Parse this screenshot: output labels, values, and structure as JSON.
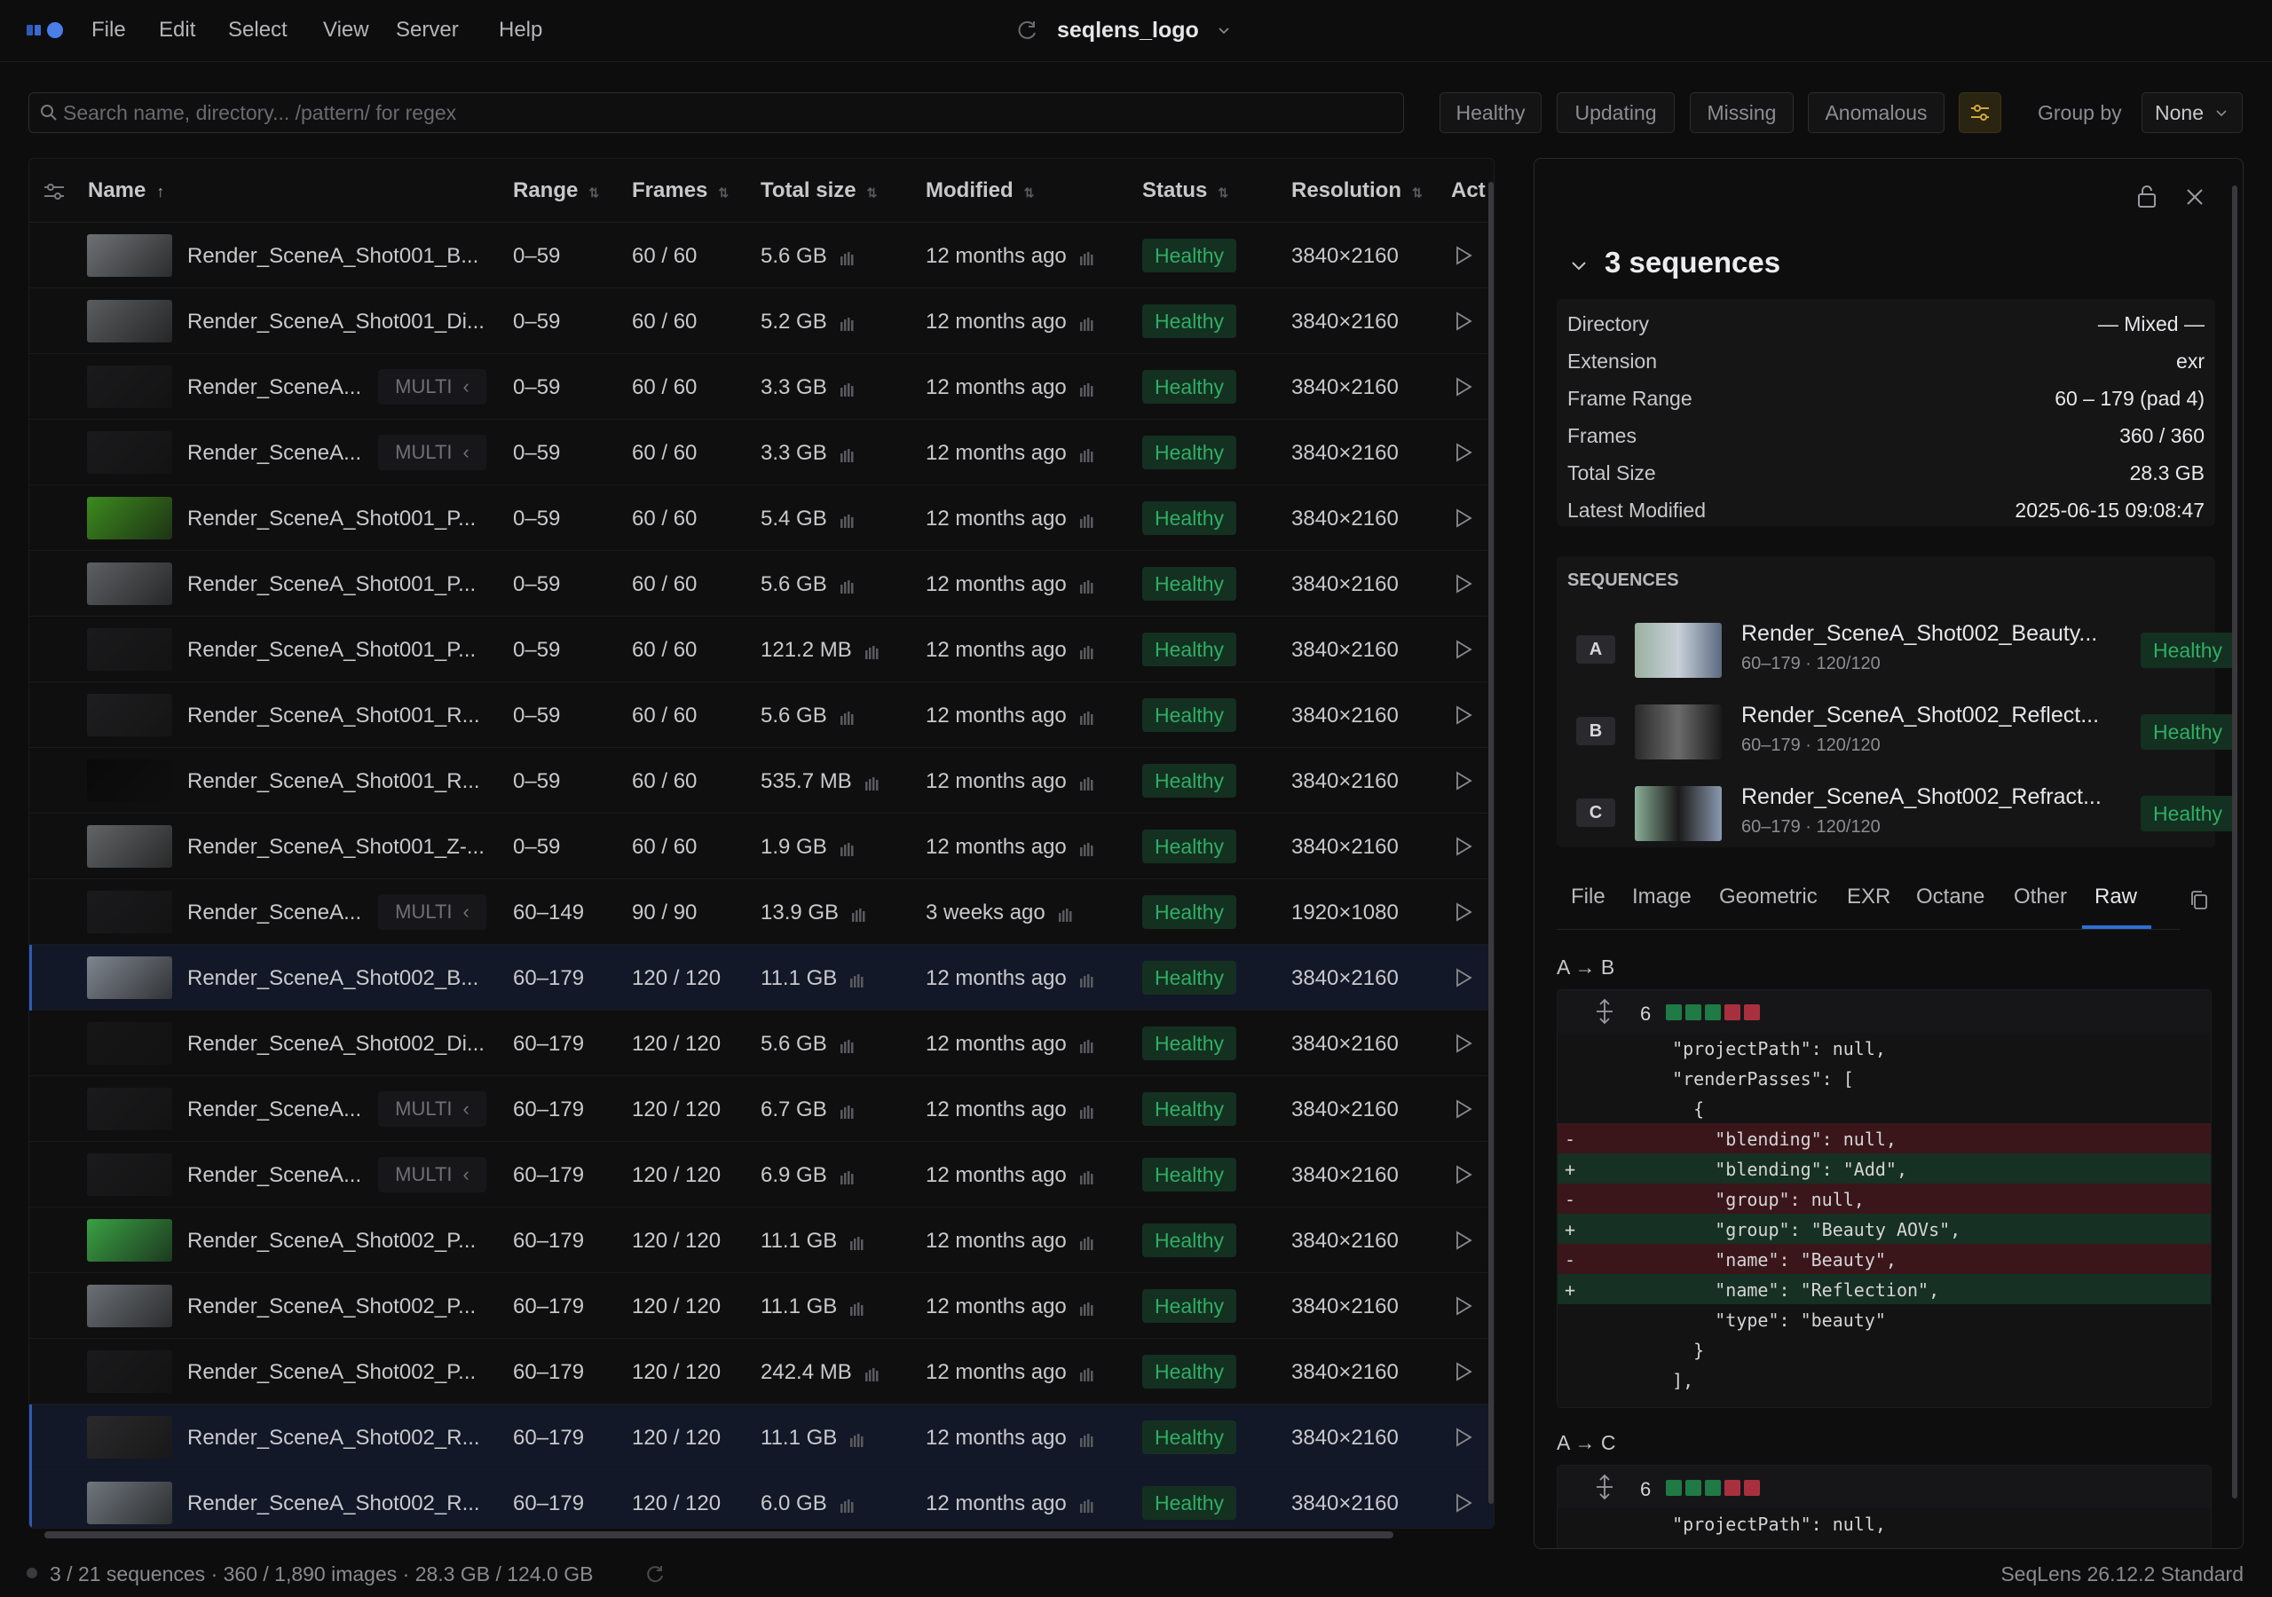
{
  "menu": [
    "File",
    "Edit",
    "Select",
    "View",
    "Server",
    "Help"
  ],
  "title": "seqlens_logo",
  "search": {
    "placeholder": "Search name, directory... /pattern/ for regex"
  },
  "filters": [
    "Healthy",
    "Updating",
    "Missing",
    "Anomalous"
  ],
  "group_by": {
    "label": "Group by",
    "value": "None"
  },
  "table": {
    "headers": {
      "name": "Name",
      "range": "Range",
      "frames": "Frames",
      "size": "Total size",
      "modified": "Modified",
      "status": "Status",
      "resolution": "Resolution",
      "actions": "Act"
    },
    "multi_label": "MULTI",
    "rows": [
      {
        "name": "Render_SceneA_Shot001_B...",
        "multi": false,
        "range": "0–59",
        "frames": "60 / 60",
        "size": "5.6 GB",
        "modified": "12 months ago",
        "status": "Healthy",
        "resolution": "3840×2160",
        "thumb": "#6e7174",
        "selected": false
      },
      {
        "name": "Render_SceneA_Shot001_Di...",
        "multi": false,
        "range": "0–59",
        "frames": "60 / 60",
        "size": "5.2 GB",
        "modified": "12 months ago",
        "status": "Healthy",
        "resolution": "3840×2160",
        "thumb": "#5a5c5e",
        "selected": false
      },
      {
        "name": "Render_SceneA...",
        "multi": true,
        "range": "0–59",
        "frames": "60 / 60",
        "size": "3.3 GB",
        "modified": "12 months ago",
        "status": "Healthy",
        "resolution": "3840×2160",
        "thumb": "#1a1a1c",
        "selected": false
      },
      {
        "name": "Render_SceneA...",
        "multi": true,
        "range": "0–59",
        "frames": "60 / 60",
        "size": "3.3 GB",
        "modified": "12 months ago",
        "status": "Healthy",
        "resolution": "3840×2160",
        "thumb": "#1a1a1c",
        "selected": false
      },
      {
        "name": "Render_SceneA_Shot001_P...",
        "multi": false,
        "range": "0–59",
        "frames": "60 / 60",
        "size": "5.4 GB",
        "modified": "12 months ago",
        "status": "Healthy",
        "resolution": "3840×2160",
        "thumb": "#3d8a1e",
        "selected": false
      },
      {
        "name": "Render_SceneA_Shot001_P...",
        "multi": false,
        "range": "0–59",
        "frames": "60 / 60",
        "size": "5.6 GB",
        "modified": "12 months ago",
        "status": "Healthy",
        "resolution": "3840×2160",
        "thumb": "#5d6063",
        "selected": false
      },
      {
        "name": "Render_SceneA_Shot001_P...",
        "multi": false,
        "range": "0–59",
        "frames": "60 / 60",
        "size": "121.2 MB",
        "modified": "12 months ago",
        "status": "Healthy",
        "resolution": "3840×2160",
        "thumb": "#1a1a1c",
        "selected": false
      },
      {
        "name": "Render_SceneA_Shot001_R...",
        "multi": false,
        "range": "0–59",
        "frames": "60 / 60",
        "size": "5.6 GB",
        "modified": "12 months ago",
        "status": "Healthy",
        "resolution": "3840×2160",
        "thumb": "#1e1e20",
        "selected": false
      },
      {
        "name": "Render_SceneA_Shot001_R...",
        "multi": false,
        "range": "0–59",
        "frames": "60 / 60",
        "size": "535.7 MB",
        "modified": "12 months ago",
        "status": "Healthy",
        "resolution": "3840×2160",
        "thumb": "#0a0a0a",
        "selected": false
      },
      {
        "name": "Render_SceneA_Shot001_Z-...",
        "multi": false,
        "range": "0–59",
        "frames": "60 / 60",
        "size": "1.9 GB",
        "modified": "12 months ago",
        "status": "Healthy",
        "resolution": "3840×2160",
        "thumb": "#626466",
        "selected": false
      },
      {
        "name": "Render_SceneA...",
        "multi": true,
        "range": "60–149",
        "frames": "90 / 90",
        "size": "13.9 GB",
        "modified": "3 weeks ago",
        "status": "Healthy",
        "resolution": "1920×1080",
        "thumb": "#1a1a1c",
        "selected": false
      },
      {
        "name": "Render_SceneA_Shot002_B...",
        "multi": false,
        "range": "60–179",
        "frames": "120 / 120",
        "size": "11.1 GB",
        "modified": "12 months ago",
        "status": "Healthy",
        "resolution": "3840×2160",
        "thumb": "#7f8690",
        "selected": true
      },
      {
        "name": "Render_SceneA_Shot002_Di...",
        "multi": false,
        "range": "60–179",
        "frames": "120 / 120",
        "size": "5.6 GB",
        "modified": "12 months ago",
        "status": "Healthy",
        "resolution": "3840×2160",
        "thumb": "#161616",
        "selected": false
      },
      {
        "name": "Render_SceneA...",
        "multi": true,
        "range": "60–179",
        "frames": "120 / 120",
        "size": "6.7 GB",
        "modified": "12 months ago",
        "status": "Healthy",
        "resolution": "3840×2160",
        "thumb": "#1a1a1c",
        "selected": false
      },
      {
        "name": "Render_SceneA...",
        "multi": true,
        "range": "60–179",
        "frames": "120 / 120",
        "size": "6.9 GB",
        "modified": "12 months ago",
        "status": "Healthy",
        "resolution": "3840×2160",
        "thumb": "#1a1a1c",
        "selected": false
      },
      {
        "name": "Render_SceneA_Shot002_P...",
        "multi": false,
        "range": "60–179",
        "frames": "120 / 120",
        "size": "11.1 GB",
        "modified": "12 months ago",
        "status": "Healthy",
        "resolution": "3840×2160",
        "thumb": "#3aa044",
        "selected": false
      },
      {
        "name": "Render_SceneA_Shot002_P...",
        "multi": false,
        "range": "60–179",
        "frames": "120 / 120",
        "size": "11.1 GB",
        "modified": "12 months ago",
        "status": "Healthy",
        "resolution": "3840×2160",
        "thumb": "#6b7075",
        "selected": false
      },
      {
        "name": "Render_SceneA_Shot002_P...",
        "multi": false,
        "range": "60–179",
        "frames": "120 / 120",
        "size": "242.4 MB",
        "modified": "12 months ago",
        "status": "Healthy",
        "resolution": "3840×2160",
        "thumb": "#1a1a1c",
        "selected": false
      },
      {
        "name": "Render_SceneA_Shot002_R...",
        "multi": false,
        "range": "60–179",
        "frames": "120 / 120",
        "size": "11.1 GB",
        "modified": "12 months ago",
        "status": "Healthy",
        "resolution": "3840×2160",
        "thumb": "#2a2a2c",
        "selected": true
      },
      {
        "name": "Render_SceneA_Shot002_R...",
        "multi": false,
        "range": "60–179",
        "frames": "120 / 120",
        "size": "6.0 GB",
        "modified": "12 months ago",
        "status": "Healthy",
        "resolution": "3840×2160",
        "thumb": "#6f767d",
        "selected": true
      }
    ]
  },
  "inspector": {
    "title": "3 sequences",
    "props": [
      {
        "k": "Directory",
        "v": "— Mixed —"
      },
      {
        "k": "Extension",
        "v": "exr"
      },
      {
        "k": "Frame Range",
        "v": "60 – 179 (pad 4)"
      },
      {
        "k": "Frames",
        "v": "360 / 360"
      },
      {
        "k": "Total Size",
        "v": "28.3 GB"
      },
      {
        "k": "Latest Modified",
        "v": "2025-06-15 09:08:47"
      }
    ],
    "sequences_label": "SEQUENCES",
    "sequences": [
      {
        "letter": "A",
        "name": "Render_SceneA_Shot002_Beauty...",
        "sub": "60–179 · 120/120",
        "status": "Healthy"
      },
      {
        "letter": "B",
        "name": "Render_SceneA_Shot002_Reflect...",
        "sub": "60–179 · 120/120",
        "status": "Healthy"
      },
      {
        "letter": "C",
        "name": "Render_SceneA_Shot002_Refract...",
        "sub": "60–179 · 120/120",
        "status": "Healthy"
      }
    ],
    "tabs": [
      "File",
      "Image",
      "Geometric",
      "EXR",
      "Octane",
      "Other",
      "Raw"
    ],
    "active_tab": "Raw",
    "diffs": [
      {
        "label": "A → B",
        "count": "6",
        "lines": [
          {
            "t": "ctx",
            "s": "",
            "c": "  \"projectPath\": null,"
          },
          {
            "t": "ctx",
            "s": "",
            "c": "  \"renderPasses\": ["
          },
          {
            "t": "ctx",
            "s": "",
            "c": "    {"
          },
          {
            "t": "del",
            "s": "-",
            "c": "      \"blending\": null,"
          },
          {
            "t": "add",
            "s": "+",
            "c": "      \"blending\": \"Add\","
          },
          {
            "t": "del",
            "s": "-",
            "c": "      \"group\": null,"
          },
          {
            "t": "add",
            "s": "+",
            "c": "      \"group\": \"Beauty AOVs\","
          },
          {
            "t": "del",
            "s": "-",
            "c": "      \"name\": \"Beauty\","
          },
          {
            "t": "add",
            "s": "+",
            "c": "      \"name\": \"Reflection\","
          },
          {
            "t": "ctx",
            "s": "",
            "c": "      \"type\": \"beauty\""
          },
          {
            "t": "ctx",
            "s": "",
            "c": "    }"
          },
          {
            "t": "ctx",
            "s": "",
            "c": "  ],"
          }
        ]
      },
      {
        "label": "A → C",
        "count": "6",
        "lines": [
          {
            "t": "ctx",
            "s": "",
            "c": "  \"projectPath\": null,"
          }
        ]
      }
    ]
  },
  "status": {
    "summary": "3 / 21 sequences · 360 / 1,890 images · 28.3 GB / 124.0 GB",
    "version": "SeqLens 26.12.2 Standard"
  },
  "colors": {
    "accent": "#2f5bb7",
    "healthy_text": "#2fae64",
    "healthy_bg": "#143021",
    "diff_add": "#163023",
    "diff_del": "#3a161a"
  }
}
